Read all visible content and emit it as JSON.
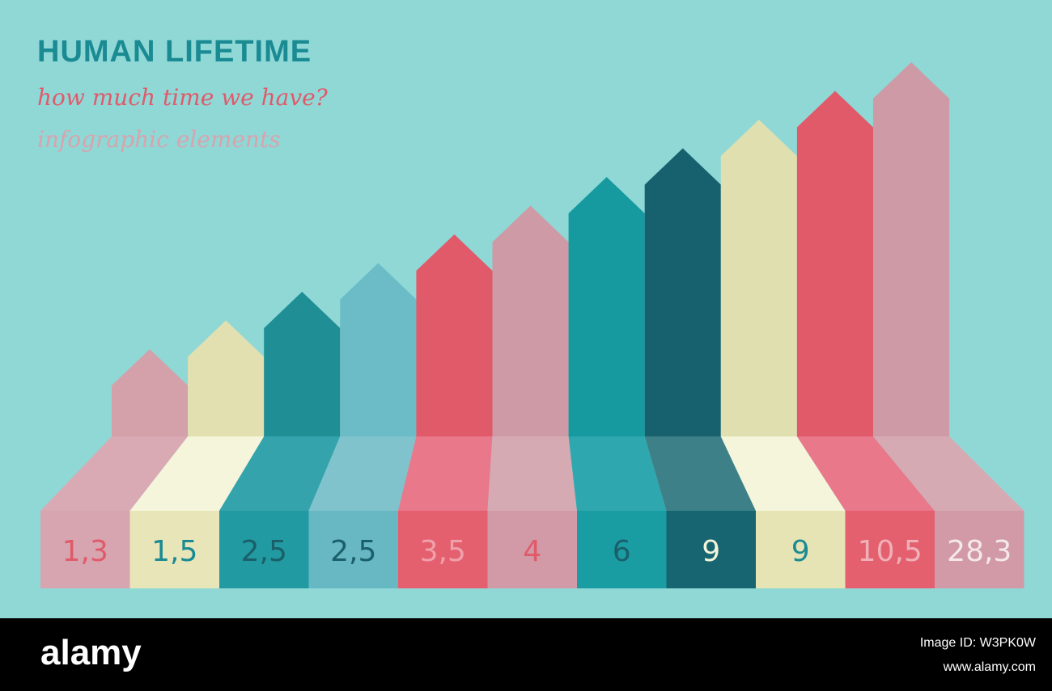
{
  "header": {
    "title": "HUMAN LIFETIME",
    "subtitle": "how much time we have?",
    "caption": "infographic elements"
  },
  "items": [
    {
      "label": "1,3"
    },
    {
      "label": "1,5"
    },
    {
      "label": "2,5"
    },
    {
      "label": "2,5"
    },
    {
      "label": "3,5"
    },
    {
      "label": "4"
    },
    {
      "label": "6"
    },
    {
      "label": "9"
    },
    {
      "label": "9"
    },
    {
      "label": "10,5"
    },
    {
      "label": "28,3"
    }
  ],
  "footer": {
    "logo": "alamy",
    "image_id": "Image ID: W3PK0W",
    "url": "www.alamy.com"
  }
}
